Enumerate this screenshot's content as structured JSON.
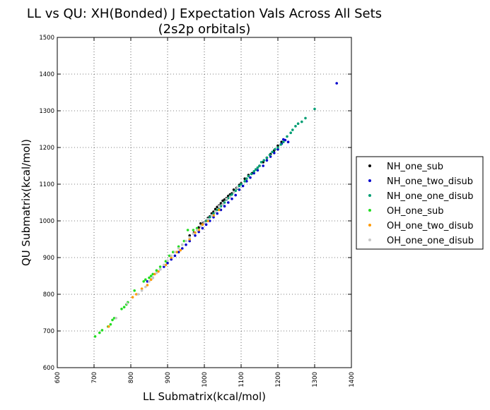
{
  "chart_data": {
    "type": "scatter",
    "title": "LL vs QU: XH(Bonded) J Expectation Vals Across All Sets",
    "subtitle": "(2s2p orbitals)",
    "xlabel": "LL Submatrix(kcal/mol)",
    "ylabel": "QU Submatrix(kcal/mol)",
    "xlim": [
      600,
      1400
    ],
    "ylim": [
      600,
      1500
    ],
    "xticks": [
      "600",
      "700",
      "800",
      "900",
      "1000",
      "1100",
      "1200",
      "1300",
      "1400"
    ],
    "yticks": [
      "600",
      "700",
      "800",
      "900",
      "1000",
      "1100",
      "1200",
      "1300",
      "1400",
      "1500"
    ],
    "grid": true,
    "legend_position": "right-outside",
    "series": [
      {
        "name": "NH_one_sub",
        "color": "#000000",
        "points": [
          [
            960,
            960
          ],
          [
            972,
            968
          ],
          [
            985,
            982
          ],
          [
            990,
            993
          ],
          [
            998,
            995
          ],
          [
            1005,
            1000
          ],
          [
            1010,
            1008
          ],
          [
            1015,
            1012
          ],
          [
            1020,
            1020
          ],
          [
            1025,
            1025
          ],
          [
            1030,
            1032
          ],
          [
            1035,
            1038
          ],
          [
            1040,
            1042
          ],
          [
            1045,
            1048
          ],
          [
            1050,
            1055
          ],
          [
            1055,
            1058
          ],
          [
            1060,
            1062
          ],
          [
            1065,
            1068
          ],
          [
            1070,
            1072
          ],
          [
            1075,
            1075
          ],
          [
            1080,
            1085
          ],
          [
            1088,
            1090
          ],
          [
            1095,
            1098
          ],
          [
            1100,
            1102
          ],
          [
            1110,
            1115
          ],
          [
            1120,
            1125
          ],
          [
            1130,
            1130
          ],
          [
            1140,
            1140
          ],
          [
            1150,
            1150
          ],
          [
            1160,
            1160
          ],
          [
            1170,
            1172
          ],
          [
            1180,
            1182
          ],
          [
            1190,
            1192
          ],
          [
            1200,
            1205
          ],
          [
            1210,
            1215
          ]
        ]
      },
      {
        "name": "NH_one_two_disub",
        "color": "#0000cc",
        "points": [
          [
            1360,
            1375
          ],
          [
            845,
            835
          ],
          [
            860,
            845
          ],
          [
            880,
            868
          ],
          [
            890,
            875
          ],
          [
            900,
            885
          ],
          [
            910,
            895
          ],
          [
            920,
            905
          ],
          [
            930,
            915
          ],
          [
            940,
            925
          ],
          [
            950,
            935
          ],
          [
            960,
            945
          ],
          [
            975,
            960
          ],
          [
            985,
            970
          ],
          [
            995,
            980
          ],
          [
            1005,
            990
          ],
          [
            1015,
            1000
          ],
          [
            1025,
            1010
          ],
          [
            1035,
            1020
          ],
          [
            1045,
            1030
          ],
          [
            1055,
            1040
          ],
          [
            1065,
            1050
          ],
          [
            1075,
            1060
          ],
          [
            1085,
            1070
          ],
          [
            1095,
            1085
          ],
          [
            1105,
            1095
          ],
          [
            1115,
            1108
          ],
          [
            1125,
            1118
          ],
          [
            1135,
            1130
          ],
          [
            1145,
            1138
          ],
          [
            1160,
            1150
          ],
          [
            1170,
            1165
          ],
          [
            1180,
            1175
          ],
          [
            1190,
            1185
          ],
          [
            1200,
            1195
          ],
          [
            1210,
            1210
          ],
          [
            1220,
            1220
          ],
          [
            1228,
            1215
          ],
          [
            1215,
            1222
          ]
        ]
      },
      {
        "name": "NH_one_one_disub",
        "color": "#009e73",
        "points": [
          [
            1300,
            1305
          ],
          [
            1275,
            1280
          ],
          [
            1265,
            1270
          ],
          [
            1255,
            1265
          ],
          [
            1248,
            1258
          ],
          [
            1240,
            1248
          ],
          [
            1235,
            1240
          ],
          [
            1225,
            1230
          ],
          [
            1215,
            1215
          ],
          [
            1208,
            1208
          ],
          [
            1200,
            1200
          ],
          [
            1192,
            1195
          ],
          [
            1185,
            1188
          ],
          [
            1178,
            1180
          ],
          [
            1170,
            1172
          ],
          [
            1162,
            1165
          ],
          [
            1155,
            1160
          ],
          [
            1150,
            1150
          ],
          [
            1145,
            1145
          ],
          [
            1140,
            1140
          ],
          [
            1135,
            1135
          ],
          [
            1128,
            1128
          ],
          [
            1120,
            1122
          ],
          [
            1115,
            1115
          ],
          [
            1110,
            1108
          ],
          [
            1100,
            1100
          ],
          [
            1095,
            1095
          ],
          [
            1090,
            1088
          ],
          [
            1085,
            1082
          ],
          [
            1080,
            1078
          ],
          [
            1075,
            1072
          ],
          [
            1070,
            1068
          ],
          [
            1065,
            1062
          ],
          [
            1060,
            1058
          ],
          [
            1055,
            1050
          ],
          [
            1050,
            1045
          ],
          [
            1045,
            1040
          ],
          [
            1040,
            1032
          ],
          [
            1035,
            1030
          ],
          [
            1030,
            1025
          ],
          [
            1025,
            1020
          ],
          [
            1020,
            1015
          ],
          [
            1015,
            1010
          ],
          [
            1010,
            1005
          ],
          [
            1005,
            1000
          ]
        ]
      },
      {
        "name": "OH_one_sub",
        "color": "#22dd22",
        "points": [
          [
            703,
            685
          ],
          [
            715,
            695
          ],
          [
            722,
            702
          ],
          [
            738,
            712
          ],
          [
            745,
            718
          ],
          [
            750,
            730
          ],
          [
            755,
            735
          ],
          [
            775,
            760
          ],
          [
            782,
            765
          ],
          [
            788,
            772
          ],
          [
            792,
            778
          ],
          [
            810,
            810
          ],
          [
            835,
            835
          ],
          [
            840,
            840
          ],
          [
            850,
            845
          ],
          [
            855,
            850
          ],
          [
            860,
            855
          ],
          [
            870,
            865
          ],
          [
            880,
            875
          ],
          [
            895,
            890
          ],
          [
            905,
            905
          ],
          [
            915,
            915
          ],
          [
            930,
            930
          ],
          [
            940,
            935
          ],
          [
            945,
            945
          ],
          [
            955,
            975
          ],
          [
            970,
            975
          ],
          [
            980,
            980
          ]
        ]
      },
      {
        "name": "OH_one_two_disub",
        "color": "#ff9900",
        "points": [
          [
            740,
            712
          ],
          [
            805,
            792
          ],
          [
            815,
            800
          ],
          [
            830,
            815
          ],
          [
            845,
            825
          ],
          [
            855,
            840
          ],
          [
            865,
            855
          ],
          [
            875,
            862
          ],
          [
            895,
            880
          ],
          [
            910,
            900
          ],
          [
            925,
            915
          ],
          [
            935,
            920
          ],
          [
            960,
            950
          ],
          [
            975,
            968
          ],
          [
            985,
            975
          ],
          [
            995,
            990
          ],
          [
            1010,
            1000
          ],
          [
            1025,
            1015
          ],
          [
            1040,
            1030
          ]
        ]
      },
      {
        "name": "OH_one_one_disub",
        "color": "#c8c8c8",
        "points": [
          [
            760,
            735
          ],
          [
            790,
            775
          ],
          [
            820,
            800
          ],
          [
            830,
            810
          ],
          [
            840,
            820
          ],
          [
            850,
            835
          ],
          [
            860,
            845
          ],
          [
            870,
            858
          ],
          [
            880,
            868
          ],
          [
            890,
            880
          ],
          [
            900,
            892
          ],
          [
            910,
            905
          ],
          [
            920,
            915
          ],
          [
            930,
            925
          ],
          [
            940,
            935
          ],
          [
            950,
            945
          ],
          [
            960,
            955
          ],
          [
            970,
            965
          ],
          [
            980,
            975
          ],
          [
            990,
            985
          ],
          [
            1000,
            995
          ],
          [
            1010,
            1005
          ],
          [
            1020,
            1015
          ],
          [
            1030,
            1025
          ],
          [
            1040,
            1040
          ],
          [
            1050,
            1045
          ],
          [
            1060,
            1060
          ],
          [
            1070,
            1065
          ],
          [
            1080,
            1078
          ],
          [
            1090,
            1090
          ]
        ]
      }
    ]
  }
}
